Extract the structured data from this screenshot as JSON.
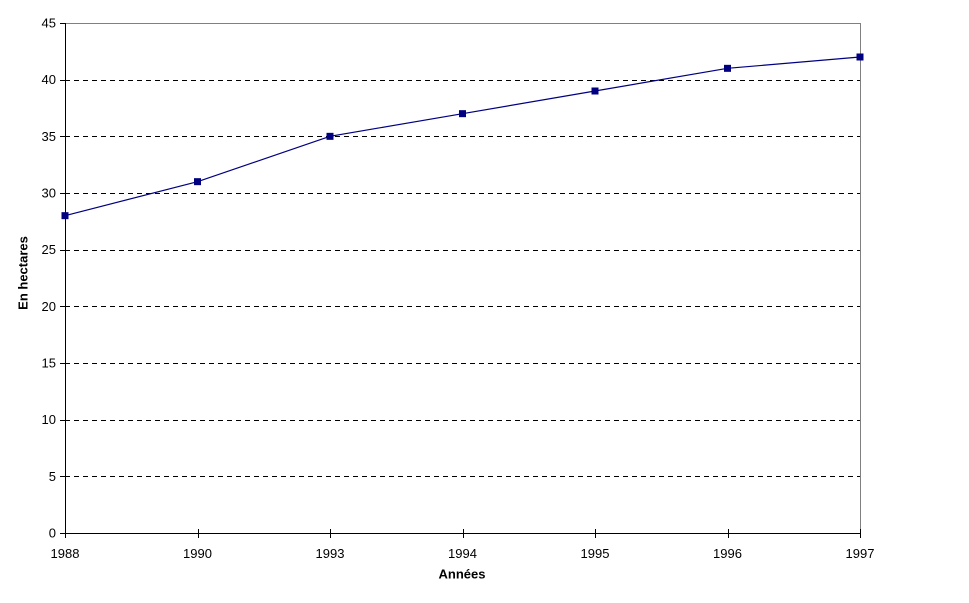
{
  "chart_data": {
    "type": "line",
    "title": "",
    "xlabel": "Années",
    "ylabel": "En hectares",
    "categories": [
      "1988",
      "1990",
      "1993",
      "1994",
      "1995",
      "1996",
      "1997"
    ],
    "series": [
      {
        "name": "En hectares",
        "values": [
          28,
          31,
          35,
          37,
          39,
          41,
          42
        ]
      }
    ],
    "ylim": [
      0,
      45
    ],
    "yticks": [
      0,
      5,
      10,
      15,
      20,
      25,
      30,
      35,
      40,
      45
    ],
    "grid": "horizontal-dashed",
    "legend_position": "none",
    "marker": "square",
    "colors": {
      "line": "#000080",
      "marker": "#000080",
      "gridline": "#000000",
      "axis": "#000000",
      "plot_border": "#808080",
      "background": "#ffffff",
      "tick_label": "#000000"
    }
  }
}
